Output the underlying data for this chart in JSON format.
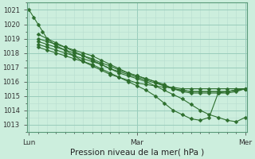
{
  "xlabel": "Pression niveau de la mer( hPa )",
  "bg_color": "#cceedd",
  "grid_major_color": "#99ccbb",
  "grid_minor_color": "#b8ddd0",
  "line_color": "#2d6e2d",
  "marker": "D",
  "markersize": 2.5,
  "linewidth": 0.8,
  "ylim": [
    1012.5,
    1021.5
  ],
  "yticks": [
    1013,
    1014,
    1015,
    1016,
    1017,
    1018,
    1019,
    1020,
    1021
  ],
  "xtick_labels": [
    "Lun",
    "Mar",
    "Mer"
  ],
  "xtick_positions": [
    0,
    48,
    96
  ],
  "xlim": [
    -1,
    97
  ],
  "series": [
    {
      "x": [
        0,
        2,
        4,
        6,
        8,
        12,
        16,
        20,
        24,
        28,
        32,
        36,
        40,
        44,
        48,
        52,
        56,
        60,
        64,
        68,
        72,
        76,
        80,
        84,
        88,
        92,
        96
      ],
      "y": [
        1021.0,
        1020.5,
        1020.0,
        1019.5,
        1019.0,
        1018.5,
        1018.2,
        1017.8,
        1017.4,
        1017.1,
        1016.8,
        1016.5,
        1016.3,
        1016.1,
        1015.9,
        1015.8,
        1015.7,
        1015.6,
        1015.6,
        1015.5,
        1015.5,
        1015.5,
        1015.5,
        1015.5,
        1015.5,
        1015.5,
        1015.5
      ]
    },
    {
      "x": [
        4,
        8,
        12,
        16,
        20,
        24,
        28,
        32,
        36,
        40,
        44,
        48,
        52,
        56,
        60,
        64,
        68,
        72,
        76,
        80,
        84,
        88,
        92,
        96
      ],
      "y": [
        1019.3,
        1019.0,
        1018.7,
        1018.4,
        1018.1,
        1017.8,
        1017.5,
        1017.2,
        1016.9,
        1016.7,
        1016.5,
        1016.3,
        1016.1,
        1015.9,
        1015.7,
        1015.5,
        1015.4,
        1015.3,
        1015.3,
        1015.3,
        1015.3,
        1015.3,
        1015.4,
        1015.5
      ]
    },
    {
      "x": [
        4,
        8,
        12,
        16,
        20,
        24,
        28,
        32,
        36,
        40,
        44,
        48,
        52,
        56,
        60,
        64,
        68,
        72,
        76,
        80,
        84,
        88,
        92,
        96
      ],
      "y": [
        1019.0,
        1018.8,
        1018.6,
        1018.4,
        1018.2,
        1018.0,
        1017.8,
        1017.5,
        1017.2,
        1016.9,
        1016.6,
        1016.4,
        1016.2,
        1016.0,
        1015.8,
        1015.5,
        1015.4,
        1015.3,
        1015.3,
        1015.3,
        1015.3,
        1015.3,
        1015.4,
        1015.5
      ]
    },
    {
      "x": [
        4,
        8,
        12,
        16,
        20,
        24,
        28,
        32,
        36,
        40,
        44,
        48,
        52,
        56,
        60,
        64,
        68,
        72,
        76,
        80,
        84,
        88,
        92,
        96
      ],
      "y": [
        1018.8,
        1018.6,
        1018.4,
        1018.2,
        1018.0,
        1017.8,
        1017.6,
        1017.3,
        1017.1,
        1016.8,
        1016.6,
        1016.4,
        1016.2,
        1016.0,
        1015.7,
        1015.5,
        1015.3,
        1015.2,
        1015.2,
        1015.2,
        1015.2,
        1015.2,
        1015.3,
        1015.5
      ]
    },
    {
      "x": [
        4,
        8,
        12,
        16,
        20,
        24,
        28,
        32,
        36,
        40,
        44,
        48,
        52,
        56,
        60,
        64,
        68,
        72,
        76,
        80,
        84,
        88,
        92,
        96
      ],
      "y": [
        1018.6,
        1018.4,
        1018.2,
        1018.0,
        1017.8,
        1017.6,
        1017.4,
        1017.2,
        1016.9,
        1016.6,
        1016.4,
        1016.2,
        1016.0,
        1015.7,
        1015.4,
        1015.1,
        1014.8,
        1014.4,
        1014.0,
        1013.7,
        1013.5,
        1013.3,
        1013.2,
        1013.5
      ]
    },
    {
      "x": [
        4,
        8,
        12,
        16,
        20,
        24,
        28,
        32,
        36,
        40,
        44,
        48,
        52,
        56,
        60,
        64,
        68,
        72,
        76,
        80,
        84,
        88,
        92,
        96
      ],
      "y": [
        1018.4,
        1018.2,
        1018.0,
        1017.8,
        1017.6,
        1017.4,
        1017.2,
        1016.9,
        1016.6,
        1016.3,
        1016.0,
        1015.7,
        1015.4,
        1015.0,
        1014.5,
        1014.0,
        1013.7,
        1013.4,
        1013.3,
        1013.5,
        1015.2,
        1015.3,
        1015.4,
        1015.5
      ]
    }
  ]
}
